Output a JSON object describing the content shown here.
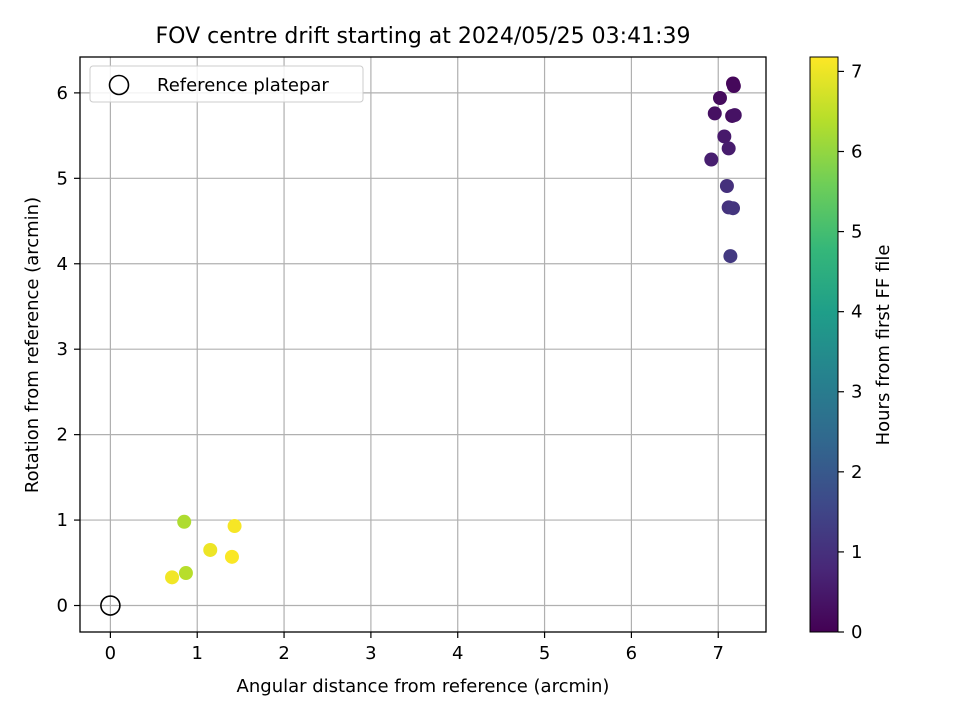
{
  "chart_data": {
    "type": "scatter",
    "title": "FOV centre drift starting at 2024/05/25 03:41:39",
    "xlabel": "Angular distance from reference (arcmin)",
    "ylabel": "Rotation from reference (arcmin)",
    "xlim": [
      -0.35,
      7.55
    ],
    "ylim": [
      -0.31,
      6.42
    ],
    "x_ticks": [
      0,
      1,
      2,
      3,
      4,
      5,
      6,
      7
    ],
    "y_ticks": [
      0,
      1,
      2,
      3,
      4,
      5,
      6
    ],
    "grid": true,
    "legend": {
      "position": "top-left",
      "entries": [
        "Reference platepar"
      ]
    },
    "reference_point": {
      "x": 0,
      "y": 0,
      "label": "Reference platepar"
    },
    "points": [
      {
        "x": 7.17,
        "y": 6.11,
        "hours": 0.1
      },
      {
        "x": 7.18,
        "y": 6.08,
        "hours": 0.15
      },
      {
        "x": 7.02,
        "y": 5.94,
        "hours": 0.2
      },
      {
        "x": 6.96,
        "y": 5.76,
        "hours": 0.3
      },
      {
        "x": 7.16,
        "y": 5.73,
        "hours": 0.25
      },
      {
        "x": 7.19,
        "y": 5.74,
        "hours": 0.35
      },
      {
        "x": 7.07,
        "y": 5.49,
        "hours": 0.5
      },
      {
        "x": 6.92,
        "y": 5.22,
        "hours": 0.6
      },
      {
        "x": 7.12,
        "y": 5.35,
        "hours": 0.55
      },
      {
        "x": 7.1,
        "y": 4.91,
        "hours": 1.0
      },
      {
        "x": 7.12,
        "y": 4.66,
        "hours": 1.05
      },
      {
        "x": 7.17,
        "y": 4.65,
        "hours": 1.1
      },
      {
        "x": 7.14,
        "y": 4.09,
        "hours": 1.2
      },
      {
        "x": 0.85,
        "y": 0.98,
        "hours": 6.3
      },
      {
        "x": 1.43,
        "y": 0.93,
        "hours": 7.1
      },
      {
        "x": 1.15,
        "y": 0.65,
        "hours": 7.0
      },
      {
        "x": 1.4,
        "y": 0.57,
        "hours": 7.15
      },
      {
        "x": 0.87,
        "y": 0.38,
        "hours": 6.4
      },
      {
        "x": 0.71,
        "y": 0.33,
        "hours": 7.05
      }
    ],
    "colorbar": {
      "label": "Hours from first FF file",
      "range": [
        0,
        7.18
      ],
      "ticks": [
        0,
        1,
        2,
        3,
        4,
        5,
        6,
        7
      ],
      "colormap": [
        "#440154",
        "#482878",
        "#3e4989",
        "#31688e",
        "#26828e",
        "#1f9e89",
        "#35b779",
        "#6ece58",
        "#b5de2b",
        "#fde725"
      ]
    }
  }
}
